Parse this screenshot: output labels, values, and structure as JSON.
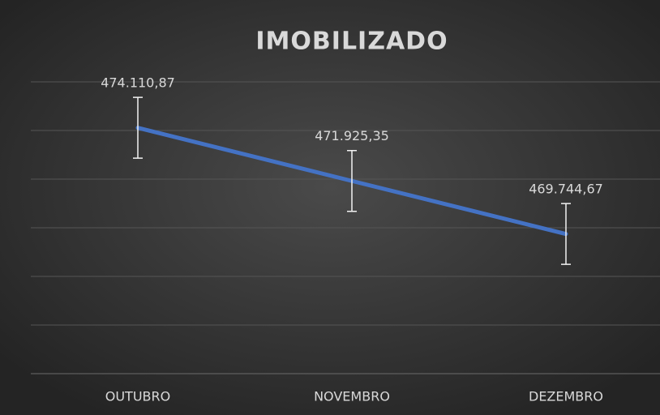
{
  "chart_data": {
    "type": "line",
    "title": "IMOBILIZADO",
    "categories": [
      "OUTUBRO",
      "NOVEMBRO",
      "DEZEMBRO"
    ],
    "series": [
      {
        "color": "#4472c4",
        "values": [
          474110.87,
          471925.35,
          469744.67
        ],
        "value_labels": [
          "474.110,87",
          "471.925,35",
          "469.744,67"
        ],
        "errors": [
          1250,
          1250,
          1250
        ]
      }
    ],
    "ylim": [
      464000,
      476000
    ],
    "yticks": [
      464000,
      466000,
      468000,
      470000,
      472000,
      474000,
      476000
    ],
    "grid": true
  }
}
